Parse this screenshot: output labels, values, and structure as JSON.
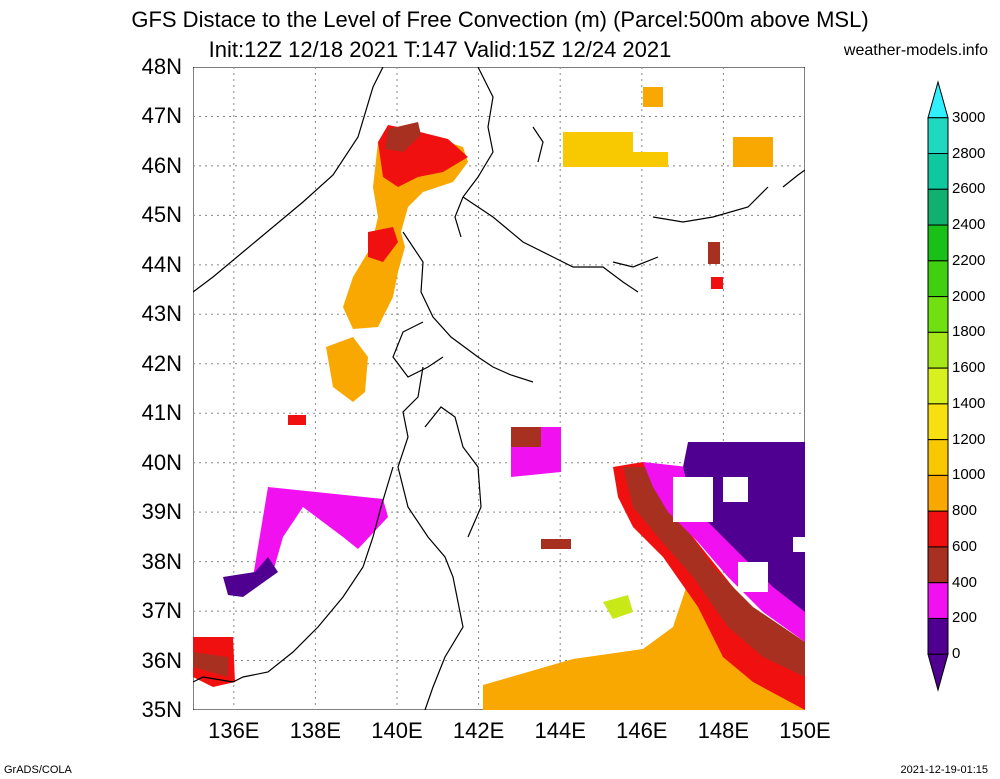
{
  "header": {
    "title": "GFS Distace to the Level of Free Convection (m) (Parcel:500m above MSL)",
    "subtitle": "Init:12Z 12/18 2021 T:147 Valid:15Z 12/24 2021",
    "site": "weather-models.info"
  },
  "map": {
    "lat_labels": [
      "48N",
      "47N",
      "46N",
      "45N",
      "44N",
      "43N",
      "42N",
      "41N",
      "40N",
      "39N",
      "38N",
      "37N",
      "36N",
      "35N"
    ],
    "lon_labels": [
      "136E",
      "138E",
      "140E",
      "142E",
      "144E",
      "146E",
      "148E",
      "150E"
    ],
    "extent": {
      "lon_min": 135,
      "lon_max": 150,
      "lat_min": 35,
      "lat_max": 48
    }
  },
  "colorbar": {
    "labels": [
      "3000",
      "2800",
      "2600",
      "2400",
      "2200",
      "2000",
      "1800",
      "1600",
      "1400",
      "1200",
      "1000",
      "800",
      "600",
      "400",
      "200",
      "0"
    ],
    "colors": [
      "#30f0ff",
      "#20d8c0",
      "#10c8a0",
      "#10b070",
      "#18c018",
      "#40d010",
      "#70e010",
      "#a8e818",
      "#d8f020",
      "#f8e010",
      "#f8c800",
      "#f8a800",
      "#f01010",
      "#a83020",
      "#f010f0",
      "#500090"
    ]
  },
  "footer": {
    "left": "GrADS/COLA",
    "right": "2021-12-19-01:15"
  }
}
